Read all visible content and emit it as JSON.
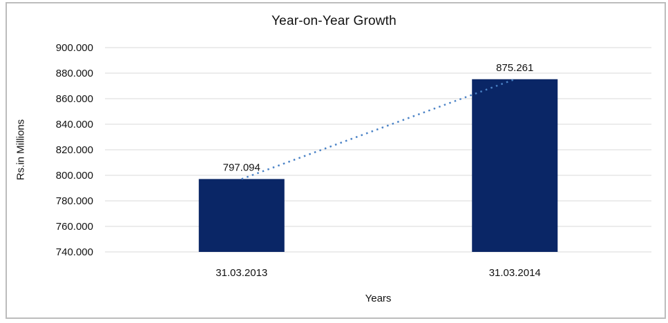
{
  "chart_data": {
    "type": "bar",
    "title": "Year-on-Year Growth",
    "xlabel": "Years",
    "ylabel": "Rs.in Millions",
    "categories": [
      "31.03.2013",
      "31.03.2014"
    ],
    "values": [
      797.094,
      875.261
    ],
    "data_labels": [
      "797.094",
      "875.261"
    ],
    "ylim": [
      740,
      900
    ],
    "yticks": [
      {
        "value": 740,
        "label": "740.000"
      },
      {
        "value": 760,
        "label": "760.000"
      },
      {
        "value": 780,
        "label": "780.000"
      },
      {
        "value": 800,
        "label": "800.000"
      },
      {
        "value": 820,
        "label": "820.000"
      },
      {
        "value": 840,
        "label": "840.000"
      },
      {
        "value": 860,
        "label": "860.000"
      },
      {
        "value": 880,
        "label": "880.000"
      },
      {
        "value": 900,
        "label": "900.000"
      }
    ],
    "grid": true,
    "legend": "none",
    "trendline": {
      "type": "linear",
      "style": "dotted"
    },
    "colors": {
      "bar": "#0a2666",
      "trendline": "#4a82c6",
      "gridline": "#d9d9d9",
      "frame_border": "#bcbcbc",
      "text": "#111111",
      "background": "#ffffff"
    }
  }
}
